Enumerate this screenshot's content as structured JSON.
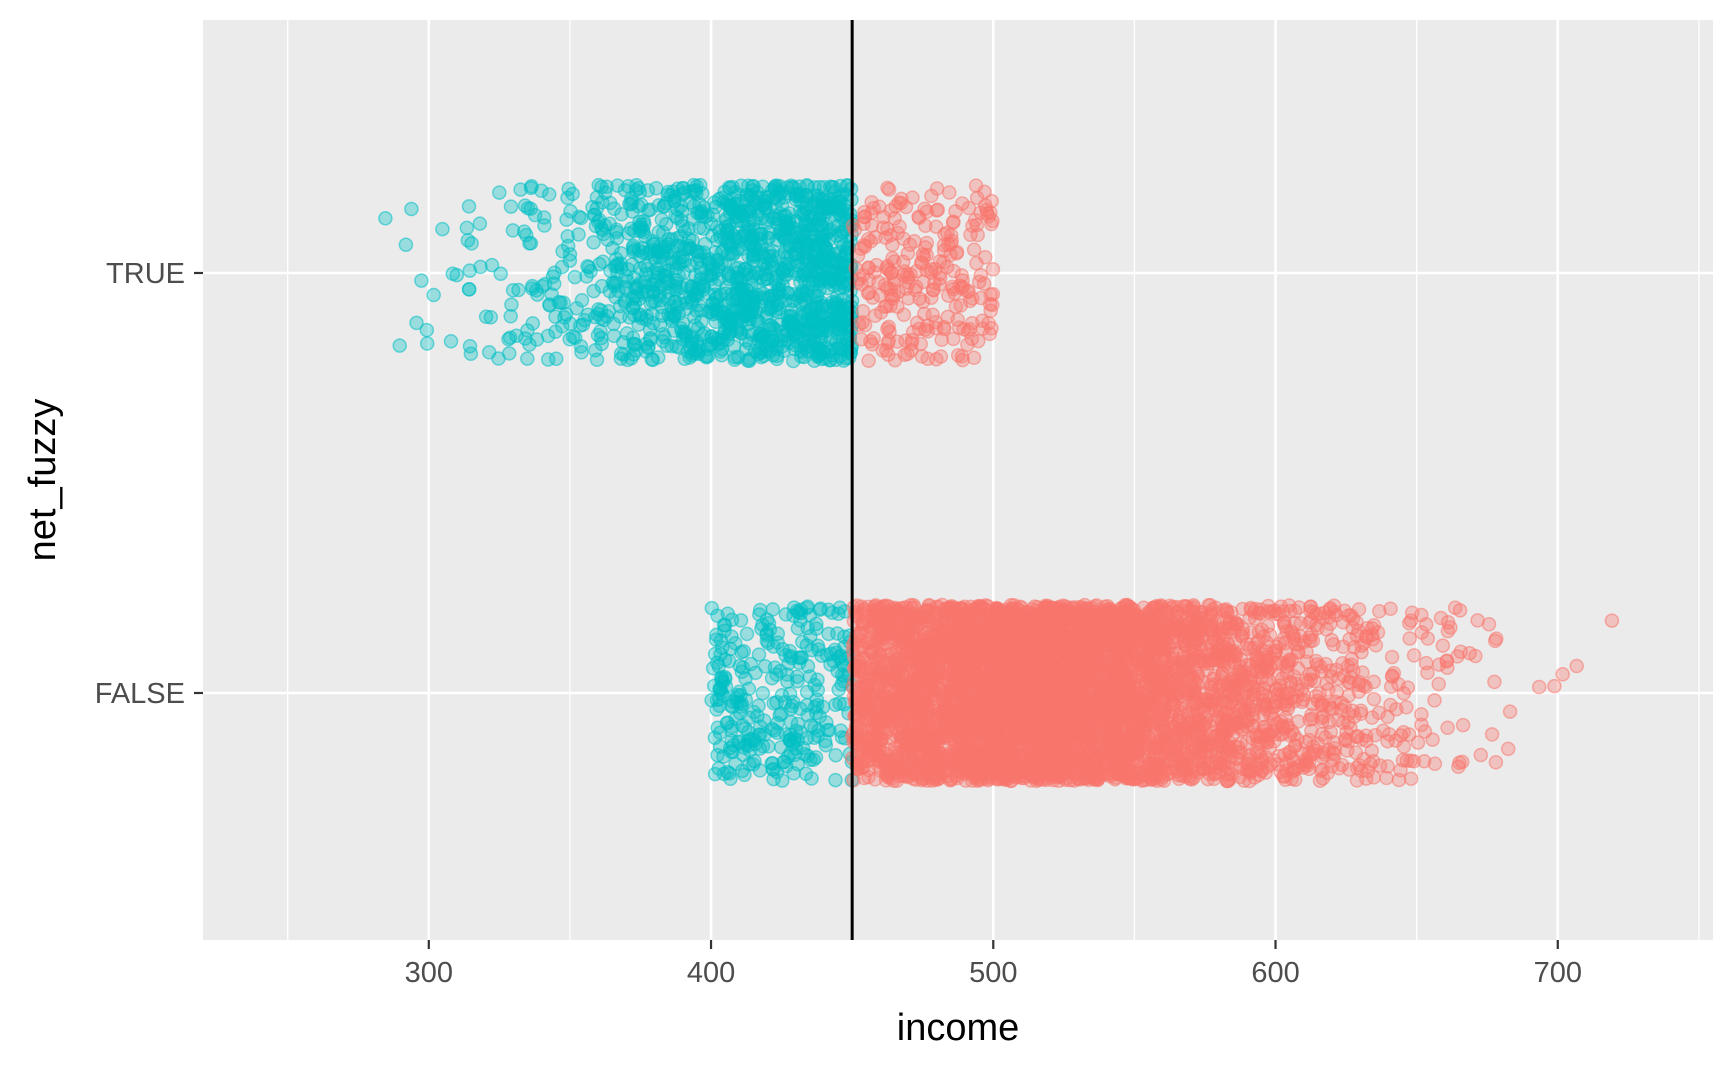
{
  "chart_data": {
    "type": "scatter",
    "jitter": "vertical",
    "xlabel": "income",
    "ylabel": "net_fuzzy",
    "xlim": [
      220,
      755
    ],
    "x_ticks": [
      300,
      400,
      500,
      600,
      700
    ],
    "x_ticks_text": [
      "300",
      "400",
      "500",
      "600",
      "700"
    ],
    "categories": [
      "TRUE",
      "FALSE"
    ],
    "cutoff": 450,
    "grid": true,
    "legend": "none",
    "colors": {
      "below_cutoff": "#00BFC4",
      "above_cutoff": "#F8766D",
      "cutoff_line": "#000000",
      "panel_background": "#EBEBEB",
      "gridline": "#FFFFFF"
    },
    "series": [
      {
        "category": "TRUE",
        "color": "#00BFC4",
        "x_range": [
          245,
          450
        ],
        "approx_points": 1400
      },
      {
        "category": "TRUE",
        "color": "#F8766D",
        "x_range": [
          450,
          500
        ],
        "approx_points": 250
      },
      {
        "category": "FALSE",
        "color": "#00BFC4",
        "x_range": [
          400,
          450
        ],
        "approx_points": 300
      },
      {
        "category": "FALSE",
        "color": "#F8766D",
        "x_range": [
          450,
          740
        ],
        "approx_points": 5200
      }
    ]
  }
}
